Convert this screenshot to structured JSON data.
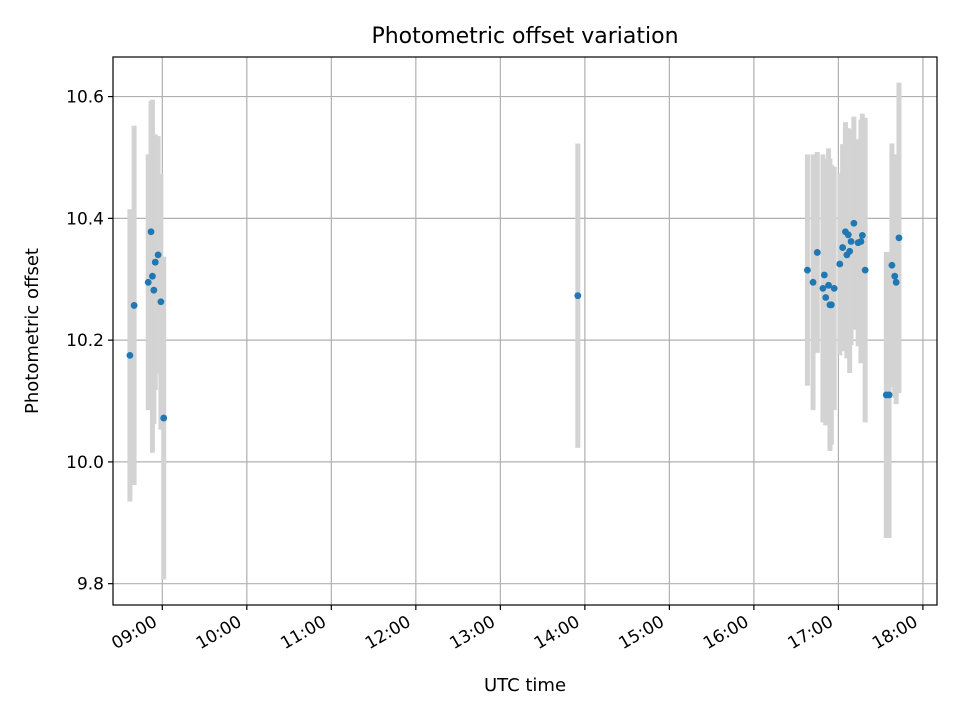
{
  "chart_data": {
    "type": "scatter",
    "title": "Photometric offset variation",
    "xlabel": "UTC time",
    "ylabel": "Photometric offset",
    "x_ticks": [
      "09:00",
      "10:00",
      "11:00",
      "12:00",
      "13:00",
      "14:00",
      "15:00",
      "16:00",
      "17:00",
      "18:00"
    ],
    "y_ticks": [
      "9.8",
      "10.0",
      "10.2",
      "10.4",
      "10.6"
    ],
    "xlim": [
      "08:25",
      "18:10"
    ],
    "ylim": [
      9.765,
      10.665
    ],
    "grid": true,
    "colors": {
      "marker": "#1f77b4",
      "errorbar": "#d3d3d3",
      "grid": "#b0b0b0"
    },
    "points": [
      {
        "x": "08:37",
        "y": 10.175,
        "err": 0.24
      },
      {
        "x": "08:40",
        "y": 10.257,
        "err": 0.295
      },
      {
        "x": "08:50",
        "y": 10.295,
        "err": 0.21
      },
      {
        "x": "08:52",
        "y": 10.378,
        "err": 0.215
      },
      {
        "x": "08:53",
        "y": 10.305,
        "err": 0.29
      },
      {
        "x": "08:54",
        "y": 10.282,
        "err": 0.22
      },
      {
        "x": "08:55",
        "y": 10.328,
        "err": 0.21
      },
      {
        "x": "08:57",
        "y": 10.34,
        "err": 0.195
      },
      {
        "x": "08:59",
        "y": 10.263,
        "err": 0.21
      },
      {
        "x": "09:01",
        "y": 10.072,
        "err": 0.265
      },
      {
        "x": "13:55",
        "y": 10.273,
        "err": 0.25
      },
      {
        "x": "16:38",
        "y": 10.315,
        "err": 0.19
      },
      {
        "x": "16:42",
        "y": 10.295,
        "err": 0.21
      },
      {
        "x": "16:45",
        "y": 10.344,
        "err": 0.165
      },
      {
        "x": "16:49",
        "y": 10.285,
        "err": 0.22
      },
      {
        "x": "16:50",
        "y": 10.307,
        "err": 0.19
      },
      {
        "x": "16:51",
        "y": 10.27,
        "err": 0.21
      },
      {
        "x": "16:53",
        "y": 10.29,
        "err": 0.225
      },
      {
        "x": "16:54",
        "y": 10.258,
        "err": 0.24
      },
      {
        "x": "16:55",
        "y": 10.258,
        "err": 0.23
      },
      {
        "x": "16:57",
        "y": 10.285,
        "err": 0.2
      },
      {
        "x": "17:01",
        "y": 10.325,
        "err": 0.15
      },
      {
        "x": "17:03",
        "y": 10.352,
        "err": 0.17
      },
      {
        "x": "17:05",
        "y": 10.378,
        "err": 0.18
      },
      {
        "x": "17:06",
        "y": 10.34,
        "err": 0.17
      },
      {
        "x": "17:07",
        "y": 10.373,
        "err": 0.175
      },
      {
        "x": "17:08",
        "y": 10.346,
        "err": 0.2
      },
      {
        "x": "17:09",
        "y": 10.362,
        "err": 0.17
      },
      {
        "x": "17:11",
        "y": 10.392,
        "err": 0.175
      },
      {
        "x": "17:14",
        "y": 10.36,
        "err": 0.17
      },
      {
        "x": "17:16",
        "y": 10.362,
        "err": 0.2
      },
      {
        "x": "17:17",
        "y": 10.372,
        "err": 0.2
      },
      {
        "x": "17:19",
        "y": 10.315,
        "err": 0.25
      },
      {
        "x": "17:34",
        "y": 10.11,
        "err": 0.235
      },
      {
        "x": "17:36",
        "y": 10.11,
        "err": 0.235
      },
      {
        "x": "17:38",
        "y": 10.323,
        "err": 0.2
      },
      {
        "x": "17:40",
        "y": 10.305,
        "err": 0.2
      },
      {
        "x": "17:41",
        "y": 10.295,
        "err": 0.2
      },
      {
        "x": "17:43",
        "y": 10.368,
        "err": 0.255
      }
    ]
  }
}
